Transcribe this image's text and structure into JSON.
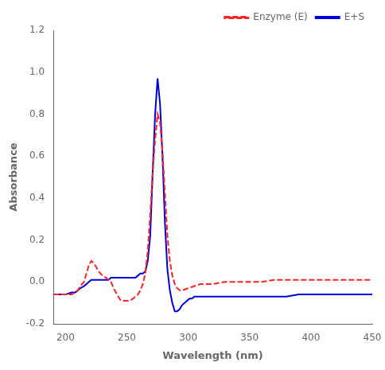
{
  "chart_data": {
    "type": "line",
    "xlabel": "Wavelength (nm)",
    "ylabel": "Absorbance",
    "xlim": [
      190,
      450
    ],
    "ylim": [
      -0.2,
      1.2
    ],
    "xticks": [
      200,
      250,
      300,
      350,
      400,
      450
    ],
    "yticks": [
      -0.2,
      {
        "value": 0.0,
        "label": "0.0"
      },
      0.2,
      0.4,
      0.6,
      0.8,
      {
        "value": 1.0,
        "label": "1.0"
      },
      1.2
    ],
    "grid": false,
    "legend": "upper right",
    "series": [
      {
        "name": "Enzyme (E)",
        "color": "#FF2222",
        "line_style": "dashed",
        "x": [
          190,
          195,
          200,
          205,
          208,
          210,
          212,
          215,
          217,
          219,
          221,
          223,
          225,
          227,
          230,
          233,
          235,
          237,
          240,
          243,
          245,
          248,
          250,
          252,
          255,
          257,
          259,
          261,
          263,
          265,
          267,
          269,
          271,
          273,
          275,
          277,
          279,
          281,
          283,
          285,
          287,
          289,
          291,
          293,
          295,
          300,
          305,
          310,
          320,
          330,
          340,
          350,
          360,
          370,
          380,
          390,
          400,
          420,
          440,
          450
        ],
        "values": [
          -0.06,
          -0.06,
          -0.06,
          -0.06,
          -0.05,
          -0.04,
          -0.02,
          0.0,
          0.04,
          0.08,
          0.1,
          0.09,
          0.07,
          0.05,
          0.03,
          0.02,
          0.01,
          0.0,
          -0.04,
          -0.07,
          -0.09,
          -0.09,
          -0.09,
          -0.09,
          -0.08,
          -0.07,
          -0.06,
          -0.04,
          -0.01,
          0.04,
          0.15,
          0.32,
          0.52,
          0.68,
          0.8,
          0.76,
          0.62,
          0.42,
          0.22,
          0.1,
          0.03,
          -0.01,
          -0.03,
          -0.04,
          -0.04,
          -0.03,
          -0.02,
          -0.01,
          -0.01,
          0.0,
          0.0,
          0.0,
          0.0,
          0.01,
          0.01,
          0.01,
          0.01,
          0.01,
          0.01,
          0.01
        ]
      },
      {
        "name": "E+S",
        "color": "#0000DD",
        "line_style": "solid",
        "x": [
          190,
          195,
          200,
          205,
          208,
          210,
          212,
          215,
          217,
          219,
          221,
          223,
          225,
          227,
          230,
          233,
          235,
          237,
          240,
          243,
          245,
          248,
          250,
          252,
          255,
          257,
          259,
          261,
          263,
          265,
          267,
          269,
          271,
          273,
          275,
          277,
          279,
          281,
          283,
          285,
          287,
          289,
          291,
          293,
          295,
          297,
          299,
          301,
          303,
          305,
          308,
          310,
          315,
          320,
          330,
          340,
          350,
          360,
          370,
          380,
          390,
          400,
          420,
          440,
          450
        ],
        "values": [
          -0.06,
          -0.06,
          -0.06,
          -0.05,
          -0.05,
          -0.04,
          -0.03,
          -0.02,
          -0.01,
          0.0,
          0.01,
          0.01,
          0.01,
          0.01,
          0.01,
          0.01,
          0.01,
          0.02,
          0.02,
          0.02,
          0.02,
          0.02,
          0.02,
          0.02,
          0.02,
          0.02,
          0.03,
          0.04,
          0.04,
          0.05,
          0.1,
          0.22,
          0.52,
          0.8,
          0.97,
          0.85,
          0.6,
          0.28,
          0.06,
          -0.04,
          -0.1,
          -0.14,
          -0.14,
          -0.13,
          -0.11,
          -0.1,
          -0.09,
          -0.08,
          -0.08,
          -0.07,
          -0.07,
          -0.07,
          -0.07,
          -0.07,
          -0.07,
          -0.07,
          -0.07,
          -0.07,
          -0.07,
          -0.07,
          -0.06,
          -0.06,
          -0.06,
          -0.06,
          -0.06
        ]
      }
    ]
  }
}
